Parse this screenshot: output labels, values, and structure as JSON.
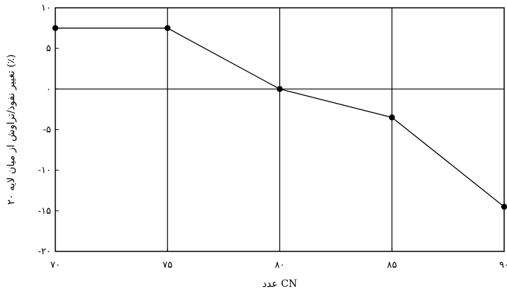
{
  "chart_data": {
    "type": "line",
    "title": "",
    "xlabel": "عدد CN",
    "ylabel": "تغییر نفوذ/تراوش از میان لایه ۲۰ (٪)",
    "x": [
      70,
      75,
      80,
      85,
      90
    ],
    "x_tick_labels": [
      "۷۰",
      "۷۵",
      "۸۰",
      "۸۵",
      "۹۰"
    ],
    "y_ticks": [
      10,
      5,
      0,
      -5,
      -10,
      -15,
      -20
    ],
    "y_tick_labels": [
      "۱۰",
      "۵",
      "۰",
      "-۵",
      "-۱۰",
      "-۱۵",
      "-۲۰"
    ],
    "xlim": [
      70,
      90
    ],
    "ylim": [
      -20,
      10
    ],
    "grid": true,
    "series": [
      {
        "values": [
          7.5,
          7.5,
          0,
          -3.5,
          -14.5
        ]
      }
    ],
    "colors": {
      "line": "#000000",
      "marker": "#000000",
      "grid": "#000000"
    }
  }
}
